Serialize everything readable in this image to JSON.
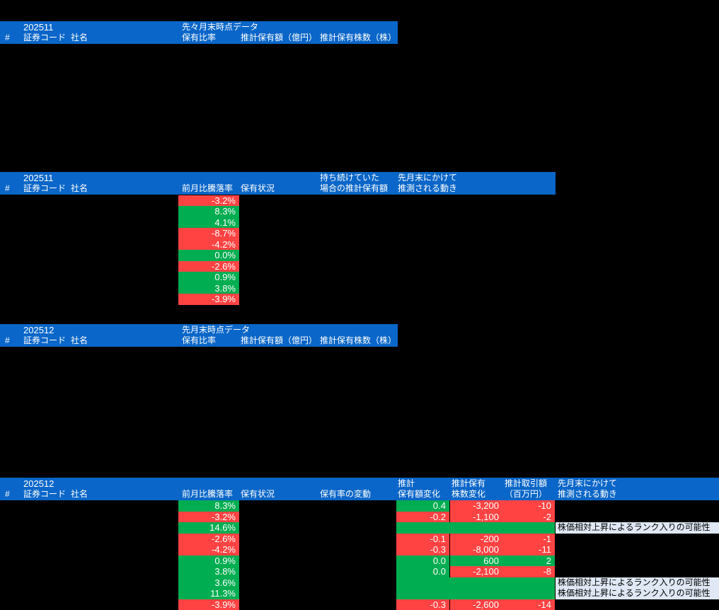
{
  "colors": {
    "page_bg": "#000000",
    "header_bg": "#0a66c8",
    "positive_green": "#00ad50",
    "negative_red": "#ff4343",
    "note_bg": "#dfe8f4",
    "header_text": "#ffffff",
    "cell_text": "#ffffff",
    "note_text": "#000000"
  },
  "section1": {
    "month": "202511",
    "subtitle": "先々月末時点データ",
    "hash": "#",
    "code": "証券コード",
    "name": "社名",
    "ratio": "保有比率",
    "amount": "推計保有額（億円）",
    "shares": "推計保有株数（株）"
  },
  "section2": {
    "month": "202511",
    "hash": "#",
    "code": "証券コード",
    "name": "社名",
    "change": "前月比騰落率",
    "status": "保有状況",
    "hold_line1": "持ち続けていた",
    "hold_line2": "場合の推計保有額",
    "move_line1": "先月末にかけて",
    "move_line2": "推測される動き",
    "rows": [
      {
        "value": "-3.2%",
        "type": "neg"
      },
      {
        "value": "8.3%",
        "type": "pos"
      },
      {
        "value": "4.1%",
        "type": "pos"
      },
      {
        "value": "-8.7%",
        "type": "neg"
      },
      {
        "value": "-4.2%",
        "type": "neg"
      },
      {
        "value": "0.0%",
        "type": "pos"
      },
      {
        "value": "-2.6%",
        "type": "neg"
      },
      {
        "value": "0.9%",
        "type": "pos"
      },
      {
        "value": "3.8%",
        "type": "pos"
      },
      {
        "value": "-3.9%",
        "type": "neg"
      }
    ]
  },
  "section3": {
    "month": "202512",
    "subtitle": "先月末時点データ",
    "hash": "#",
    "code": "証券コード",
    "name": "社名",
    "ratio": "保有比率",
    "amount": "推計保有額（億円）",
    "shares": "推計保有株数（株）"
  },
  "section4": {
    "month": "202512",
    "hash": "#",
    "code": "証券コード",
    "name": "社名",
    "change": "前月比騰落率",
    "status": "保有状況",
    "ratio_change": "保有率の変動",
    "amount_line1": "推計",
    "amount_line2": "保有額変化",
    "shares_line1": "推計保有",
    "shares_line2": "株数変化",
    "trade_line1": "推計取引額",
    "trade_line2": "（百万円）",
    "move_line1": "先月末にかけて",
    "move_line2": "推測される動き",
    "rows": [
      {
        "pct": "8.3%",
        "pct_t": "pos",
        "amt": "0.4",
        "amt_t": "pos",
        "shr": "-3,200",
        "shr_t": "neg",
        "trd": "-10",
        "trd_t": "neg",
        "note": ""
      },
      {
        "pct": "-3.2%",
        "pct_t": "neg",
        "amt": "-0.2",
        "amt_t": "neg",
        "shr": "-1,100",
        "shr_t": "neg",
        "trd": "-2",
        "trd_t": "neg",
        "note": ""
      },
      {
        "pct": "14.6%",
        "pct_t": "pos",
        "amt": "",
        "amt_t": "pos",
        "shr": "",
        "shr_t": "pos",
        "trd": "",
        "trd_t": "pos",
        "note": "株価相対上昇によるランク入りの可能性"
      },
      {
        "pct": "-2.6%",
        "pct_t": "neg",
        "amt": "-0.1",
        "amt_t": "neg",
        "shr": "-200",
        "shr_t": "neg",
        "trd": "-1",
        "trd_t": "neg",
        "note": ""
      },
      {
        "pct": "-4.2%",
        "pct_t": "neg",
        "amt": "-0.3",
        "amt_t": "neg",
        "shr": "-8,000",
        "shr_t": "neg",
        "trd": "-11",
        "trd_t": "neg",
        "note": ""
      },
      {
        "pct": "0.9%",
        "pct_t": "pos",
        "amt": "0.0",
        "amt_t": "pos",
        "shr": "600",
        "shr_t": "pos",
        "trd": "2",
        "trd_t": "pos",
        "note": ""
      },
      {
        "pct": "3.8%",
        "pct_t": "pos",
        "amt": "0.0",
        "amt_t": "pos",
        "shr": "-2,100",
        "shr_t": "neg",
        "trd": "-8",
        "trd_t": "neg",
        "note": ""
      },
      {
        "pct": "3.6%",
        "pct_t": "pos",
        "amt": "",
        "amt_t": "pos",
        "shr": "",
        "shr_t": "pos",
        "trd": "",
        "trd_t": "pos",
        "note": "株価相対上昇によるランク入りの可能性"
      },
      {
        "pct": "11.3%",
        "pct_t": "pos",
        "amt": "",
        "amt_t": "pos",
        "shr": "",
        "shr_t": "pos",
        "trd": "",
        "trd_t": "pos",
        "note": "株価相対上昇によるランク入りの可能性"
      },
      {
        "pct": "-3.9%",
        "pct_t": "neg",
        "amt": "-0.3",
        "amt_t": "neg",
        "shr": "-2,600",
        "shr_t": "neg",
        "trd": "-14",
        "trd_t": "neg",
        "note": ""
      }
    ]
  }
}
